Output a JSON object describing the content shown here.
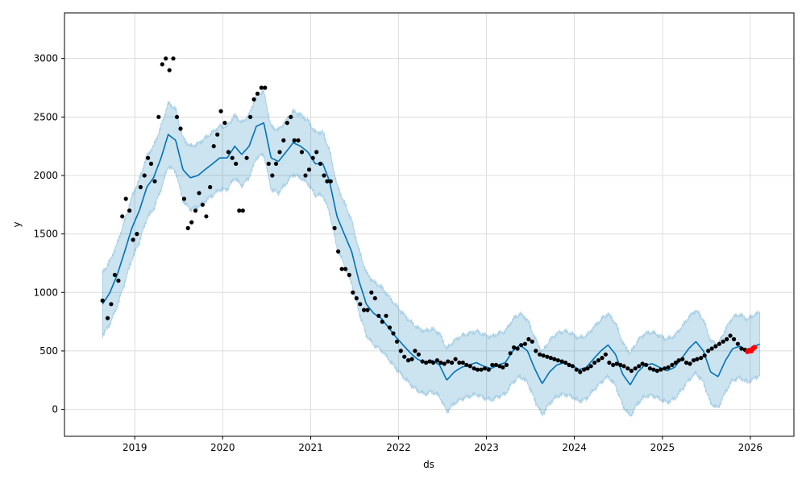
{
  "chart_data": {
    "type": "scatter",
    "title": "",
    "xlabel": "ds",
    "ylabel": "y",
    "x_axis_type": "date",
    "xlim": [
      "2018-03-15",
      "2026-07-01"
    ],
    "ylim": [
      -230,
      3390
    ],
    "xticks": [
      "2019",
      "2020",
      "2021",
      "2022",
      "2023",
      "2024",
      "2025",
      "2026"
    ],
    "yticks": [
      0,
      500,
      1000,
      1500,
      2000,
      2500,
      3000
    ],
    "grid": true,
    "legend": "none",
    "colors": {
      "observed": "#000000",
      "forecast": "#0072B2",
      "uncertainty": "#0072B2",
      "highlight": "#ff0000",
      "grid": "#dddddd"
    },
    "series": [
      {
        "key": "observed",
        "kind": "points",
        "points": [
          [
            "2018-08-20",
            930
          ],
          [
            "2018-09-10",
            780
          ],
          [
            "2018-09-25",
            900
          ],
          [
            "2018-10-10",
            1150
          ],
          [
            "2018-10-25",
            1100
          ],
          [
            "2018-11-10",
            1650
          ],
          [
            "2018-11-25",
            1800
          ],
          [
            "2018-12-10",
            1700
          ],
          [
            "2018-12-25",
            1450
          ],
          [
            "2019-01-10",
            1500
          ],
          [
            "2019-01-25",
            1900
          ],
          [
            "2019-02-10",
            2000
          ],
          [
            "2019-02-25",
            2150
          ],
          [
            "2019-03-10",
            2100
          ],
          [
            "2019-03-25",
            1950
          ],
          [
            "2019-04-10",
            2500
          ],
          [
            "2019-04-25",
            2950
          ],
          [
            "2019-05-10",
            3000
          ],
          [
            "2019-05-25",
            2900
          ],
          [
            "2019-06-10",
            3000
          ],
          [
            "2019-06-25",
            2500
          ],
          [
            "2019-07-10",
            2400
          ],
          [
            "2019-07-25",
            1800
          ],
          [
            "2019-08-10",
            1550
          ],
          [
            "2019-08-25",
            1600
          ],
          [
            "2019-09-10",
            1700
          ],
          [
            "2019-09-25",
            1850
          ],
          [
            "2019-10-10",
            1750
          ],
          [
            "2019-10-25",
            1650
          ],
          [
            "2019-11-10",
            1900
          ],
          [
            "2019-11-25",
            2250
          ],
          [
            "2019-12-10",
            2350
          ],
          [
            "2019-12-25",
            2550
          ],
          [
            "2020-01-10",
            2450
          ],
          [
            "2020-01-25",
            2200
          ],
          [
            "2020-02-10",
            2150
          ],
          [
            "2020-02-25",
            2100
          ],
          [
            "2020-03-10",
            1700
          ],
          [
            "2020-03-25",
            1700
          ],
          [
            "2020-04-10",
            2150
          ],
          [
            "2020-04-25",
            2500
          ],
          [
            "2020-05-10",
            2650
          ],
          [
            "2020-05-25",
            2700
          ],
          [
            "2020-06-10",
            2750
          ],
          [
            "2020-06-25",
            2750
          ],
          [
            "2020-07-10",
            2100
          ],
          [
            "2020-07-25",
            2000
          ],
          [
            "2020-08-10",
            2100
          ],
          [
            "2020-08-25",
            2200
          ],
          [
            "2020-09-10",
            2300
          ],
          [
            "2020-09-25",
            2450
          ],
          [
            "2020-10-10",
            2500
          ],
          [
            "2020-10-25",
            2300
          ],
          [
            "2020-11-10",
            2300
          ],
          [
            "2020-11-25",
            2200
          ],
          [
            "2020-12-10",
            2000
          ],
          [
            "2020-12-25",
            2050
          ],
          [
            "2021-01-10",
            2150
          ],
          [
            "2021-01-25",
            2200
          ],
          [
            "2021-02-10",
            2100
          ],
          [
            "2021-02-25",
            2000
          ],
          [
            "2021-03-10",
            1950
          ],
          [
            "2021-03-25",
            1950
          ],
          [
            "2021-04-10",
            1550
          ],
          [
            "2021-04-25",
            1350
          ],
          [
            "2021-05-10",
            1200
          ],
          [
            "2021-05-25",
            1200
          ],
          [
            "2021-06-10",
            1150
          ],
          [
            "2021-06-25",
            1000
          ],
          [
            "2021-07-10",
            950
          ],
          [
            "2021-07-25",
            900
          ],
          [
            "2021-08-10",
            850
          ],
          [
            "2021-08-25",
            850
          ],
          [
            "2021-09-10",
            1000
          ],
          [
            "2021-09-25",
            950
          ],
          [
            "2021-10-10",
            800
          ],
          [
            "2021-10-25",
            750
          ],
          [
            "2021-11-10",
            800
          ],
          [
            "2021-11-25",
            700
          ],
          [
            "2021-12-10",
            650
          ],
          [
            "2021-12-25",
            580
          ],
          [
            "2022-01-10",
            500
          ],
          [
            "2022-01-25",
            450
          ],
          [
            "2022-02-10",
            420
          ],
          [
            "2022-02-25",
            430
          ],
          [
            "2022-03-10",
            500
          ],
          [
            "2022-03-25",
            470
          ],
          [
            "2022-04-10",
            410
          ],
          [
            "2022-04-25",
            400
          ],
          [
            "2022-05-10",
            410
          ],
          [
            "2022-05-25",
            400
          ],
          [
            "2022-06-10",
            420
          ],
          [
            "2022-06-25",
            400
          ],
          [
            "2022-07-10",
            390
          ],
          [
            "2022-07-25",
            410
          ],
          [
            "2022-08-10",
            400
          ],
          [
            "2022-08-25",
            430
          ],
          [
            "2022-09-10",
            400
          ],
          [
            "2022-09-25",
            400
          ],
          [
            "2022-10-10",
            380
          ],
          [
            "2022-10-25",
            370
          ],
          [
            "2022-11-10",
            350
          ],
          [
            "2022-11-25",
            340
          ],
          [
            "2022-12-10",
            340
          ],
          [
            "2022-12-25",
            350
          ],
          [
            "2023-01-10",
            340
          ],
          [
            "2023-01-25",
            380
          ],
          [
            "2023-02-10",
            380
          ],
          [
            "2023-02-25",
            370
          ],
          [
            "2023-03-10",
            360
          ],
          [
            "2023-03-25",
            380
          ],
          [
            "2023-04-10",
            480
          ],
          [
            "2023-04-25",
            530
          ],
          [
            "2023-05-10",
            520
          ],
          [
            "2023-05-25",
            550
          ],
          [
            "2023-06-10",
            560
          ],
          [
            "2023-06-25",
            600
          ],
          [
            "2023-07-10",
            580
          ],
          [
            "2023-07-25",
            500
          ],
          [
            "2023-08-10",
            470
          ],
          [
            "2023-08-25",
            460
          ],
          [
            "2023-09-10",
            450
          ],
          [
            "2023-09-25",
            440
          ],
          [
            "2023-10-10",
            430
          ],
          [
            "2023-10-25",
            420
          ],
          [
            "2023-11-10",
            410
          ],
          [
            "2023-11-25",
            400
          ],
          [
            "2023-12-10",
            380
          ],
          [
            "2023-12-25",
            370
          ],
          [
            "2024-01-10",
            340
          ],
          [
            "2024-01-25",
            320
          ],
          [
            "2024-02-10",
            340
          ],
          [
            "2024-02-25",
            350
          ],
          [
            "2024-03-10",
            370
          ],
          [
            "2024-03-25",
            400
          ],
          [
            "2024-04-10",
            420
          ],
          [
            "2024-04-25",
            440
          ],
          [
            "2024-05-10",
            470
          ],
          [
            "2024-05-25",
            400
          ],
          [
            "2024-06-10",
            380
          ],
          [
            "2024-06-25",
            390
          ],
          [
            "2024-07-10",
            380
          ],
          [
            "2024-07-25",
            370
          ],
          [
            "2024-08-10",
            350
          ],
          [
            "2024-08-25",
            330
          ],
          [
            "2024-09-10",
            350
          ],
          [
            "2024-09-25",
            370
          ],
          [
            "2024-10-10",
            390
          ],
          [
            "2024-10-25",
            380
          ],
          [
            "2024-11-10",
            350
          ],
          [
            "2024-11-25",
            340
          ],
          [
            "2024-12-10",
            330
          ],
          [
            "2024-12-25",
            340
          ],
          [
            "2025-01-10",
            350
          ],
          [
            "2025-01-25",
            360
          ],
          [
            "2025-02-10",
            380
          ],
          [
            "2025-02-25",
            400
          ],
          [
            "2025-03-10",
            420
          ],
          [
            "2025-03-25",
            430
          ],
          [
            "2025-04-10",
            400
          ],
          [
            "2025-04-25",
            390
          ],
          [
            "2025-05-10",
            420
          ],
          [
            "2025-05-25",
            430
          ],
          [
            "2025-06-10",
            440
          ],
          [
            "2025-06-25",
            460
          ],
          [
            "2025-07-10",
            500
          ],
          [
            "2025-07-25",
            520
          ],
          [
            "2025-08-10",
            540
          ],
          [
            "2025-08-25",
            560
          ],
          [
            "2025-09-10",
            580
          ],
          [
            "2025-09-25",
            600
          ],
          [
            "2025-10-10",
            630
          ],
          [
            "2025-10-25",
            600
          ],
          [
            "2025-11-10",
            560
          ],
          [
            "2025-11-25",
            520
          ],
          [
            "2025-12-10",
            510
          ],
          [
            "2025-12-25",
            500
          ]
        ]
      },
      {
        "key": "forecast",
        "kind": "line",
        "points": [
          [
            "2018-08-20",
            900
          ],
          [
            "2018-09-20",
            1000
          ],
          [
            "2018-10-20",
            1150
          ],
          [
            "2018-11-20",
            1350
          ],
          [
            "2018-12-20",
            1550
          ],
          [
            "2019-01-20",
            1700
          ],
          [
            "2019-02-20",
            1900
          ],
          [
            "2019-03-20",
            1980
          ],
          [
            "2019-04-20",
            2150
          ],
          [
            "2019-05-20",
            2350
          ],
          [
            "2019-06-20",
            2300
          ],
          [
            "2019-07-20",
            2050
          ],
          [
            "2019-08-20",
            1980
          ],
          [
            "2019-09-20",
            2000
          ],
          [
            "2019-10-20",
            2050
          ],
          [
            "2019-11-20",
            2100
          ],
          [
            "2019-12-20",
            2150
          ],
          [
            "2020-01-20",
            2150
          ],
          [
            "2020-02-20",
            2250
          ],
          [
            "2020-03-20",
            2180
          ],
          [
            "2020-04-20",
            2250
          ],
          [
            "2020-05-20",
            2420
          ],
          [
            "2020-06-20",
            2450
          ],
          [
            "2020-07-20",
            2150
          ],
          [
            "2020-08-20",
            2120
          ],
          [
            "2020-09-20",
            2200
          ],
          [
            "2020-10-20",
            2280
          ],
          [
            "2020-11-20",
            2250
          ],
          [
            "2020-12-20",
            2200
          ],
          [
            "2021-01-20",
            2100
          ],
          [
            "2021-02-20",
            2100
          ],
          [
            "2021-03-20",
            1950
          ],
          [
            "2021-04-20",
            1650
          ],
          [
            "2021-05-20",
            1500
          ],
          [
            "2021-06-20",
            1350
          ],
          [
            "2021-07-20",
            1100
          ],
          [
            "2021-08-20",
            900
          ],
          [
            "2021-09-20",
            820
          ],
          [
            "2021-10-20",
            780
          ],
          [
            "2021-11-20",
            700
          ],
          [
            "2021-12-20",
            620
          ],
          [
            "2022-01-20",
            550
          ],
          [
            "2022-02-20",
            480
          ],
          [
            "2022-03-20",
            430
          ],
          [
            "2022-04-20",
            400
          ],
          [
            "2022-05-20",
            420
          ],
          [
            "2022-06-20",
            380
          ],
          [
            "2022-07-20",
            250
          ],
          [
            "2022-08-20",
            320
          ],
          [
            "2022-09-20",
            360
          ],
          [
            "2022-10-20",
            380
          ],
          [
            "2022-11-20",
            400
          ],
          [
            "2022-12-20",
            370
          ],
          [
            "2023-01-20",
            350
          ],
          [
            "2023-02-20",
            380
          ],
          [
            "2023-03-20",
            400
          ],
          [
            "2023-04-20",
            500
          ],
          [
            "2023-05-20",
            550
          ],
          [
            "2023-06-20",
            500
          ],
          [
            "2023-07-20",
            350
          ],
          [
            "2023-08-20",
            220
          ],
          [
            "2023-09-20",
            320
          ],
          [
            "2023-10-20",
            380
          ],
          [
            "2023-11-20",
            400
          ],
          [
            "2023-12-20",
            380
          ],
          [
            "2024-01-20",
            340
          ],
          [
            "2024-02-20",
            360
          ],
          [
            "2024-03-20",
            430
          ],
          [
            "2024-04-20",
            500
          ],
          [
            "2024-05-20",
            550
          ],
          [
            "2024-06-20",
            470
          ],
          [
            "2024-07-20",
            300
          ],
          [
            "2024-08-20",
            210
          ],
          [
            "2024-09-20",
            320
          ],
          [
            "2024-10-20",
            380
          ],
          [
            "2024-11-20",
            390
          ],
          [
            "2024-12-20",
            360
          ],
          [
            "2025-01-20",
            330
          ],
          [
            "2025-02-20",
            360
          ],
          [
            "2025-03-20",
            430
          ],
          [
            "2025-04-20",
            520
          ],
          [
            "2025-05-20",
            580
          ],
          [
            "2025-06-20",
            500
          ],
          [
            "2025-07-20",
            320
          ],
          [
            "2025-08-20",
            280
          ],
          [
            "2025-09-20",
            420
          ],
          [
            "2025-10-20",
            520
          ],
          [
            "2025-11-20",
            540
          ],
          [
            "2025-12-20",
            500
          ],
          [
            "2026-01-20",
            540
          ],
          [
            "2026-02-10",
            560
          ]
        ]
      },
      {
        "key": "highlight",
        "kind": "points",
        "points": [
          [
            "2025-12-20",
            495
          ],
          [
            "2025-12-28",
            505
          ],
          [
            "2026-01-05",
            500
          ],
          [
            "2026-01-12",
            520
          ],
          [
            "2026-01-18",
            530
          ]
        ]
      }
    ]
  }
}
